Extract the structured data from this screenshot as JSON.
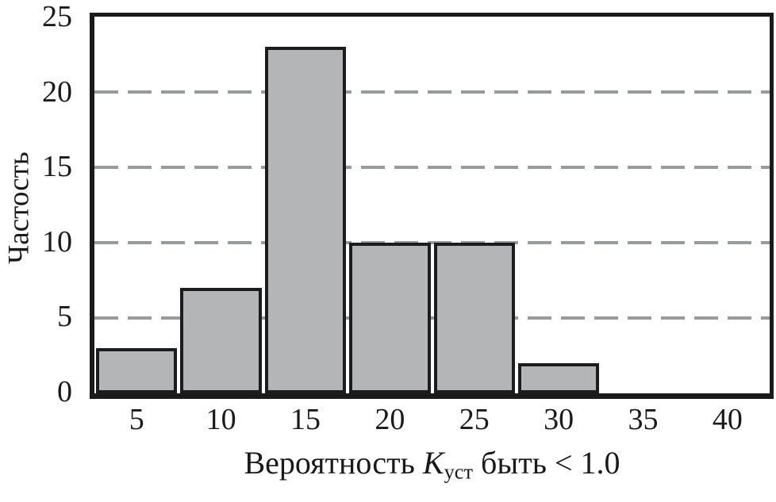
{
  "chart_data": {
    "type": "bar",
    "subtype": "histogram",
    "title": "",
    "ylabel": "Частость",
    "xlabel": "Вероятность Kуст быть < 1.0",
    "xlabel_parts": {
      "prefix": "Вероятность ",
      "symbol": "K",
      "subscript": "уст",
      "suffix": " быть < 1.0"
    },
    "categories": [
      5,
      10,
      15,
      20,
      25,
      30,
      35,
      40
    ],
    "values": [
      3,
      7,
      23,
      10,
      10,
      2,
      0,
      0
    ],
    "bin_width": 5,
    "x_range": [
      2.5,
      42.5
    ],
    "ylim": [
      0,
      25
    ],
    "y_ticks": [
      0,
      5,
      10,
      15,
      20,
      25
    ],
    "x_ticks": [
      5,
      10,
      15,
      20,
      25,
      30,
      35,
      40
    ],
    "gridlines": [
      5,
      10,
      15,
      20
    ],
    "grid_style": "dashed",
    "legend_position": "none",
    "colors": {
      "bar_fill": "#b3b5b7",
      "bar_border": "#1c1c1e",
      "frame": "#1a1a1a",
      "gridline": "#999a9c",
      "text": "#1a1a1a",
      "background": "#ffffff"
    }
  }
}
